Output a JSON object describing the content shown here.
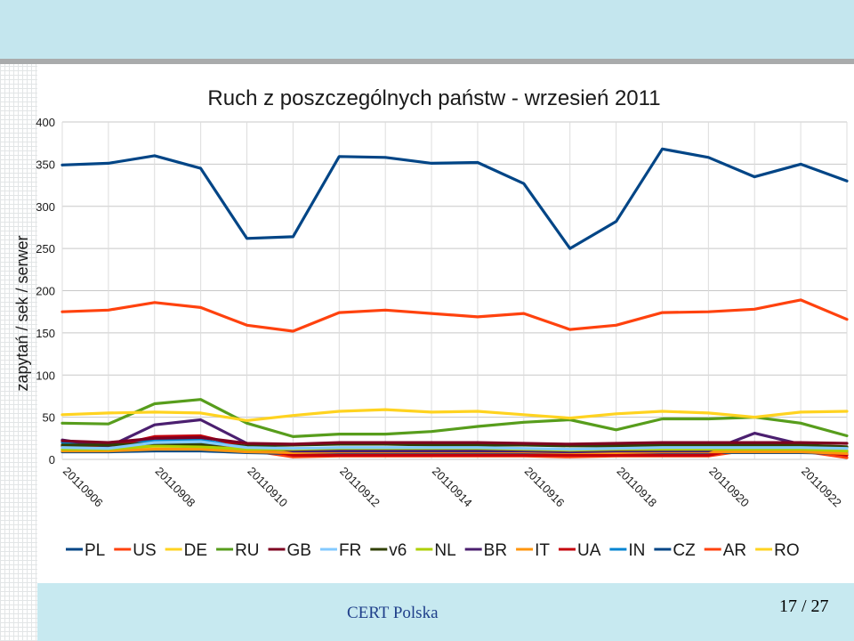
{
  "colors": {
    "top_band": "#c4e6ee",
    "bottom_band": "#c7e9f0",
    "footer_text": "#1f3f8a"
  },
  "footer": {
    "org": "CERT Polska",
    "page": "17 / 27"
  },
  "chart_data": {
    "type": "line",
    "title": "Ruch z poszczególnych państw - wrzesień 2011",
    "xlabel": "",
    "ylabel": "zapytań / sek / serwer",
    "ylim": [
      0,
      400
    ],
    "yticks": [
      0,
      50,
      100,
      150,
      200,
      250,
      300,
      350,
      400
    ],
    "grid": true,
    "legend_position": "bottom",
    "x": [
      "20110906",
      "20110907",
      "20110908",
      "20110909",
      "20110910",
      "20110911",
      "20110912",
      "20110913",
      "20110914",
      "20110915",
      "20110916",
      "20110917",
      "20110918",
      "20110919",
      "20110920",
      "20110921",
      "20110922",
      "20110923"
    ],
    "xticks": [
      "20110906",
      "20110908",
      "20110910",
      "20110912",
      "20110914",
      "20110916",
      "20110918",
      "20110920",
      "20110922"
    ],
    "series": [
      {
        "name": "PL",
        "color": "#004586",
        "values": [
          349,
          351,
          360,
          345,
          262,
          264,
          359,
          358,
          351,
          352,
          327,
          250,
          282,
          368,
          358,
          335,
          350,
          330
        ]
      },
      {
        "name": "US",
        "color": "#ff420e",
        "values": [
          175,
          177,
          186,
          180,
          159,
          152,
          174,
          177,
          173,
          169,
          173,
          154,
          159,
          174,
          175,
          178,
          189,
          166
        ]
      },
      {
        "name": "DE",
        "color": "#ffd320",
        "values": [
          53,
          55,
          56,
          55,
          46,
          52,
          57,
          59,
          56,
          57,
          53,
          49,
          54,
          57,
          55,
          50,
          56,
          57
        ]
      },
      {
        "name": "RU",
        "color": "#579d1c",
        "values": [
          43,
          42,
          66,
          71,
          43,
          27,
          30,
          30,
          33,
          39,
          44,
          47,
          35,
          48,
          48,
          50,
          43,
          28
        ]
      },
      {
        "name": "GB",
        "color": "#7e0021",
        "values": [
          22,
          20,
          25,
          26,
          19,
          18,
          20,
          20,
          20,
          20,
          19,
          18,
          19,
          20,
          20,
          20,
          20,
          19
        ]
      },
      {
        "name": "FR",
        "color": "#83caff",
        "values": [
          14,
          13,
          20,
          21,
          14,
          13,
          14,
          14,
          14,
          14,
          13,
          12,
          13,
          14,
          14,
          14,
          14,
          13
        ]
      },
      {
        "name": "v6",
        "color": "#314004",
        "values": [
          17,
          17,
          19,
          18,
          16,
          17,
          18,
          18,
          17,
          17,
          17,
          16,
          16,
          17,
          17,
          17,
          17,
          15
        ]
      },
      {
        "name": "NL",
        "color": "#aecf00",
        "values": [
          12,
          12,
          16,
          15,
          12,
          12,
          13,
          13,
          13,
          13,
          12,
          11,
          12,
          12,
          12,
          12,
          12,
          10
        ]
      },
      {
        "name": "BR",
        "color": "#4b1f6f",
        "values": [
          23,
          15,
          41,
          47,
          19,
          10,
          10,
          10,
          10,
          10,
          10,
          9,
          10,
          10,
          10,
          31,
          18,
          10
        ]
      },
      {
        "name": "IT",
        "color": "#ff950e",
        "values": [
          10,
          10,
          12,
          12,
          9,
          8,
          9,
          9,
          9,
          9,
          9,
          8,
          8,
          9,
          9,
          9,
          9,
          7
        ]
      },
      {
        "name": "UA",
        "color": "#c5000b",
        "values": [
          16,
          15,
          27,
          28,
          15,
          5,
          5,
          5,
          5,
          5,
          5,
          5,
          5,
          5,
          5,
          16,
          12,
          5
        ]
      },
      {
        "name": "IN",
        "color": "#0084d1",
        "values": [
          20,
          19,
          22,
          23,
          14,
          8,
          9,
          9,
          9,
          9,
          9,
          8,
          9,
          9,
          9,
          12,
          14,
          8
        ]
      },
      {
        "name": "CZ",
        "color": "#004586",
        "values": [
          9,
          9,
          10,
          10,
          8,
          7,
          8,
          8,
          8,
          8,
          8,
          7,
          7,
          8,
          8,
          8,
          8,
          7
        ]
      },
      {
        "name": "AR",
        "color": "#ff420e",
        "values": [
          15,
          13,
          20,
          20,
          11,
          3,
          4,
          4,
          4,
          4,
          4,
          3,
          4,
          4,
          4,
          12,
          10,
          2
        ]
      },
      {
        "name": "RO",
        "color": "#ffd320",
        "values": [
          11,
          10,
          15,
          16,
          10,
          6,
          6,
          6,
          6,
          6,
          6,
          5,
          6,
          6,
          6,
          10,
          11,
          6
        ]
      }
    ]
  }
}
